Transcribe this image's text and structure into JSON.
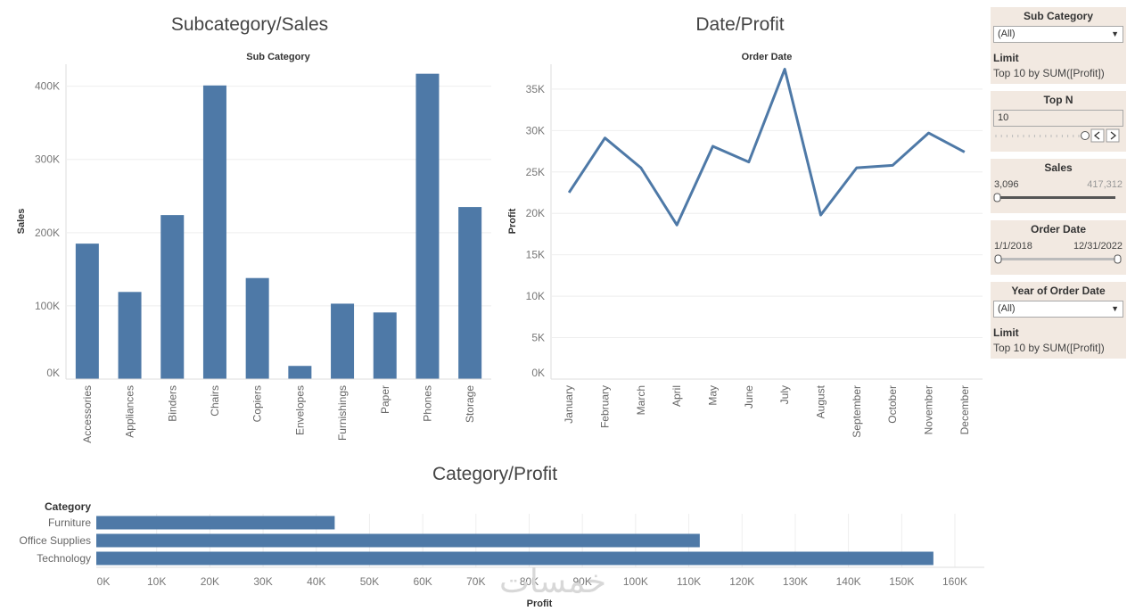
{
  "watermark": "خمسات",
  "chart_data": [
    {
      "type": "bar",
      "title": "Subcategory/Sales",
      "header": "Sub Category",
      "ylabel": "Sales",
      "ylim": [
        0,
        430000
      ],
      "yticks": [
        0,
        100000,
        200000,
        300000,
        400000
      ],
      "ytick_labels": [
        "0K",
        "100K",
        "200K",
        "300K",
        "400K"
      ],
      "grid": true,
      "color": "#4e79a7",
      "categories": [
        "Accessories",
        "Appliances",
        "Binders",
        "Chairs",
        "Copiers",
        "Envelopes",
        "Furnishings",
        "Paper",
        "Phones",
        "Storage"
      ],
      "values": [
        185000,
        119000,
        224000,
        401000,
        138000,
        18000,
        103000,
        91000,
        417000,
        235000
      ]
    },
    {
      "type": "line",
      "title": "Date/Profit",
      "header": "Order Date",
      "ylabel": "Profit",
      "ylim": [
        0,
        38000
      ],
      "yticks": [
        0,
        5000,
        10000,
        15000,
        20000,
        25000,
        30000,
        35000
      ],
      "ytick_labels": [
        "0K",
        "5K",
        "10K",
        "15K",
        "20K",
        "25K",
        "30K",
        "35K"
      ],
      "grid": true,
      "color": "#4e79a7",
      "categories": [
        "January",
        "February",
        "March",
        "April",
        "May",
        "June",
        "July",
        "August",
        "September",
        "October",
        "November",
        "December"
      ],
      "values": [
        22500,
        29100,
        25500,
        18600,
        28100,
        26200,
        37400,
        19800,
        25500,
        25800,
        29700,
        27400
      ]
    },
    {
      "type": "bar",
      "orientation": "horizontal",
      "title": "Category/Profit",
      "header": "Category",
      "xlabel": "Profit",
      "xlim": [
        0,
        165000
      ],
      "xticks": [
        0,
        10000,
        20000,
        30000,
        40000,
        50000,
        60000,
        70000,
        80000,
        90000,
        100000,
        110000,
        120000,
        130000,
        140000,
        150000,
        160000
      ],
      "xtick_labels": [
        "0K",
        "10K",
        "20K",
        "30K",
        "40K",
        "50K",
        "60K",
        "70K",
        "80K",
        "90K",
        "100K",
        "110K",
        "120K",
        "130K",
        "140K",
        "150K",
        "160K"
      ],
      "grid": true,
      "color": "#4e79a7",
      "categories": [
        "Furniture",
        "Office Supplies",
        "Technology"
      ],
      "values": [
        44800,
        113400,
        157300
      ]
    }
  ],
  "filters": {
    "subcategory": {
      "title": "Sub Category",
      "value": "(All)",
      "limit_label": "Limit",
      "limit_value": "Top 10 by SUM([Profit])"
    },
    "topn": {
      "title": "Top N",
      "value": "10",
      "level": 1.0
    },
    "sales": {
      "title": "Sales",
      "min": "3,096",
      "max": "417,312",
      "level": 0.0
    },
    "order_date": {
      "title": "Order Date",
      "min": "1/1/2018",
      "max": "12/31/2022"
    },
    "year": {
      "title": "Year of Order Date",
      "value": "(All)",
      "limit_label": "Limit",
      "limit_value": "Top 10 by SUM([Profit])"
    }
  }
}
